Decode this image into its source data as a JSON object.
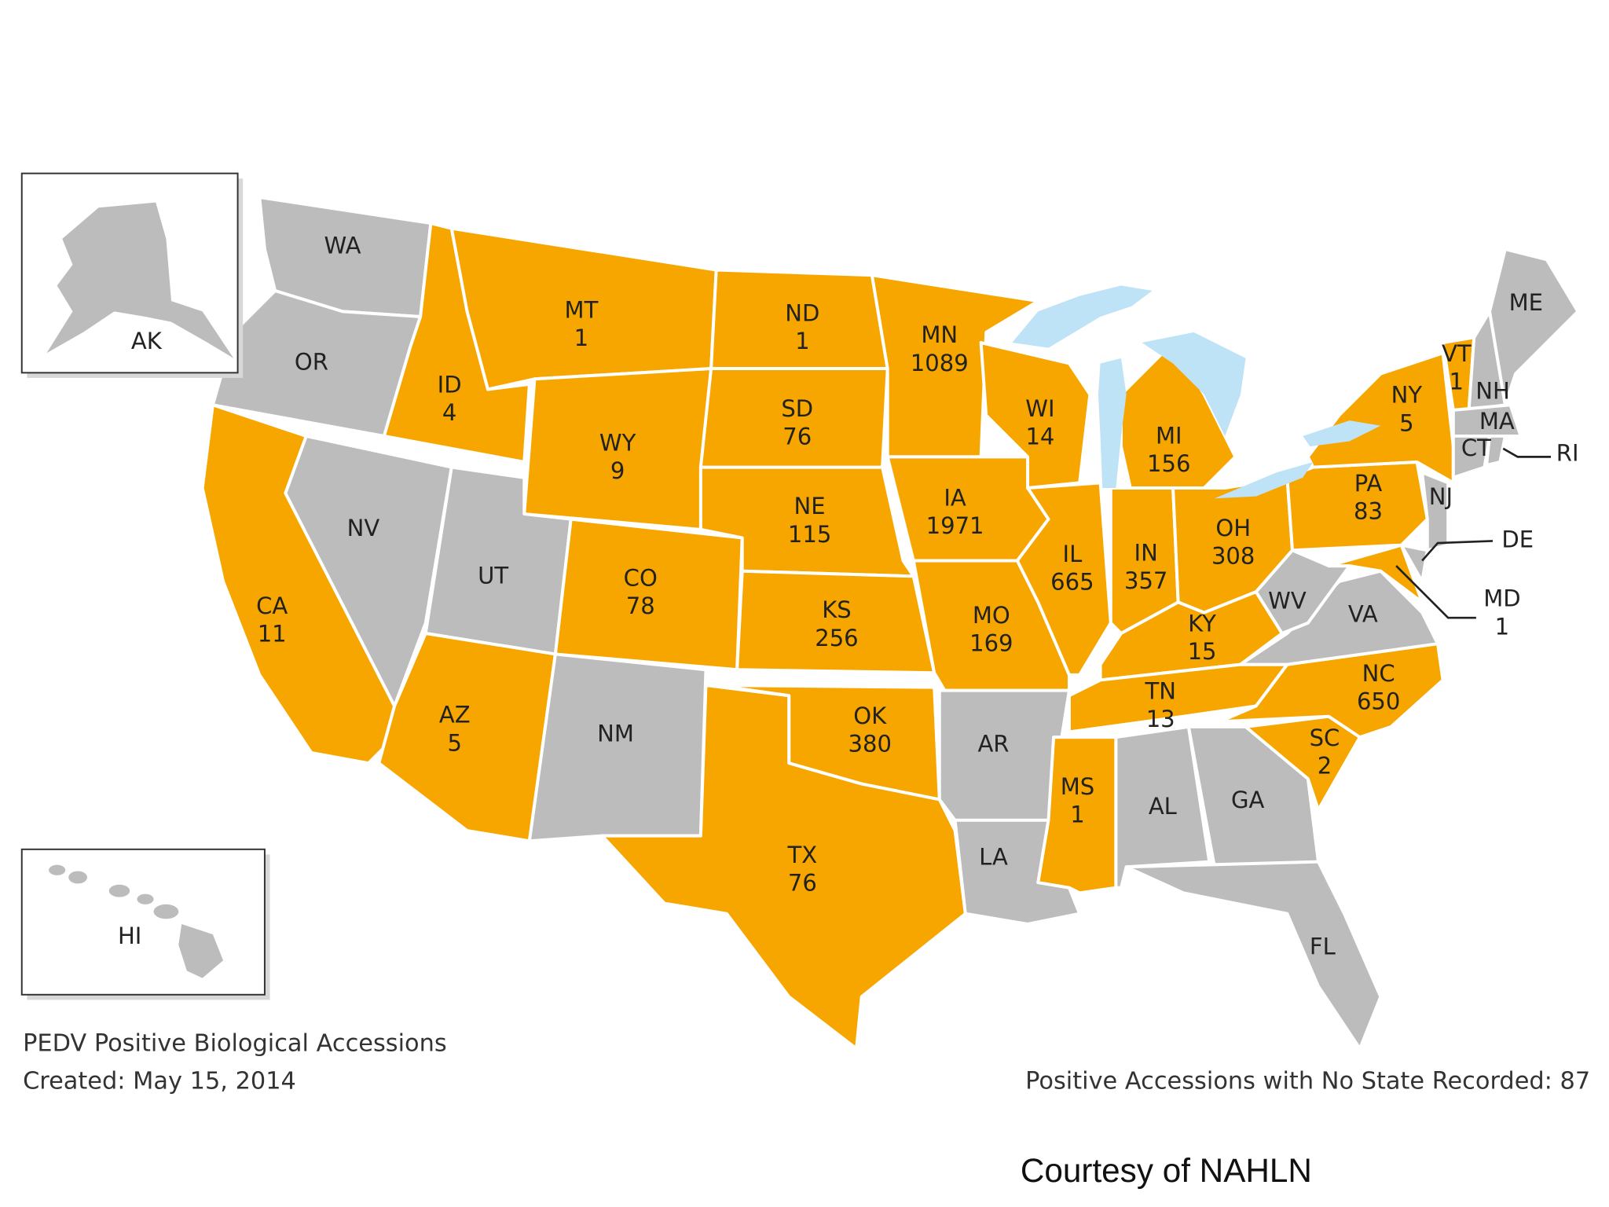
{
  "map": {
    "colors": {
      "positive": "#f7a600",
      "none": "#bcbcbc",
      "water": "#bfe3f6"
    },
    "states": [
      {
        "abbr": "WA"
      },
      {
        "abbr": "OR"
      },
      {
        "abbr": "CA",
        "value": 11
      },
      {
        "abbr": "NV"
      },
      {
        "abbr": "ID",
        "value": 4
      },
      {
        "abbr": "MT",
        "value": 1
      },
      {
        "abbr": "WY",
        "value": 9
      },
      {
        "abbr": "UT"
      },
      {
        "abbr": "CO",
        "value": 78
      },
      {
        "abbr": "AZ",
        "value": 5
      },
      {
        "abbr": "NM"
      },
      {
        "abbr": "ND",
        "value": 1
      },
      {
        "abbr": "SD",
        "value": 76
      },
      {
        "abbr": "NE",
        "value": 115
      },
      {
        "abbr": "KS",
        "value": 256
      },
      {
        "abbr": "OK",
        "value": 380
      },
      {
        "abbr": "TX",
        "value": 76
      },
      {
        "abbr": "MN",
        "value": 1089
      },
      {
        "abbr": "IA",
        "value": 1971
      },
      {
        "abbr": "MO",
        "value": 169
      },
      {
        "abbr": "AR"
      },
      {
        "abbr": "LA"
      },
      {
        "abbr": "WI",
        "value": 14
      },
      {
        "abbr": "IL",
        "value": 665
      },
      {
        "abbr": "MI",
        "value": 156
      },
      {
        "abbr": "IN",
        "value": 357
      },
      {
        "abbr": "OH",
        "value": 308
      },
      {
        "abbr": "KY",
        "value": 15
      },
      {
        "abbr": "TN",
        "value": 13
      },
      {
        "abbr": "MS",
        "value": 1
      },
      {
        "abbr": "AL"
      },
      {
        "abbr": "GA"
      },
      {
        "abbr": "FL"
      },
      {
        "abbr": "SC",
        "value": 2
      },
      {
        "abbr": "NC",
        "value": 650
      },
      {
        "abbr": "VA"
      },
      {
        "abbr": "WV"
      },
      {
        "abbr": "PA",
        "value": 83
      },
      {
        "abbr": "NY",
        "value": 5
      },
      {
        "abbr": "MD",
        "value": 1
      },
      {
        "abbr": "NJ"
      },
      {
        "abbr": "DE"
      },
      {
        "abbr": "VT",
        "value": 1
      },
      {
        "abbr": "NH"
      },
      {
        "abbr": "ME"
      },
      {
        "abbr": "MA"
      },
      {
        "abbr": "CT"
      },
      {
        "abbr": "RI"
      }
    ],
    "insets": [
      {
        "abbr": "AK"
      },
      {
        "abbr": "HI"
      }
    ]
  },
  "caption": {
    "title": "PEDV Positive Biological Accessions",
    "created": "Created: May 15, 2014",
    "no_state": "Positive Accessions with No State Recorded: 87"
  },
  "credit": "Courtesy of NAHLN"
}
